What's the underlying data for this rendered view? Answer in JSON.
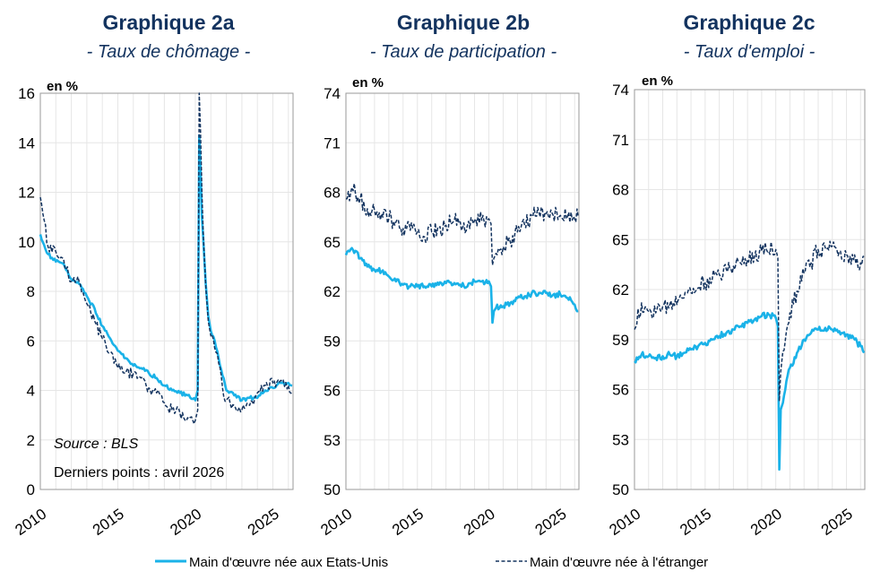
{
  "legend": {
    "us_born": "Main d'œuvre née aux Etats-Unis",
    "foreign_born": "Main d'œuvre née à l'étranger"
  },
  "colors": {
    "us_born": "#1ab2e8",
    "foreign_born": "#13335f",
    "title": "#13335f",
    "grid": "#e6e6e6",
    "frame": "#9a9a9a"
  },
  "chart_data": [
    {
      "type": "line",
      "title": "Graphique 2a",
      "subtitle": "- Taux de chômage -",
      "unit_label": "en %",
      "xlim": [
        2010,
        2026.3
      ],
      "ylim": [
        0,
        16
      ],
      "yticks": [
        0,
        2,
        4,
        6,
        8,
        10,
        12,
        14,
        16
      ],
      "xticks": [
        2010,
        2015,
        2020,
        2025
      ],
      "annotations": [
        "Source : BLS",
        "Derniers points : avril 2026"
      ],
      "series": [
        {
          "name": "Main d'œuvre née aux Etats-Unis",
          "x": [
            2010,
            2010.5,
            2011,
            2011.5,
            2012,
            2012.5,
            2013,
            2013.5,
            2014,
            2014.5,
            2015,
            2015.5,
            2016,
            2016.5,
            2017,
            2017.5,
            2018,
            2018.5,
            2019,
            2019.5,
            2020,
            2020.15,
            2020.25,
            2020.33,
            2020.42,
            2020.5,
            2020.67,
            2020.83,
            2021,
            2021.25,
            2021.5,
            2021.75,
            2022,
            2022.5,
            2023,
            2023.5,
            2024,
            2024.5,
            2025,
            2025.5,
            2026,
            2026.25
          ],
          "values": [
            10.3,
            9.5,
            9.2,
            9.1,
            8.5,
            8.3,
            7.8,
            7.3,
            6.6,
            6.1,
            5.6,
            5.3,
            5.0,
            4.9,
            4.7,
            4.5,
            4.2,
            4.0,
            3.9,
            3.8,
            3.6,
            4.0,
            14.3,
            13.0,
            11.0,
            10.2,
            8.3,
            7.0,
            6.4,
            6.0,
            5.3,
            4.6,
            4.0,
            3.8,
            3.6,
            3.7,
            3.7,
            4.0,
            4.1,
            4.3,
            4.3,
            4.2
          ]
        },
        {
          "name": "Main d'œuvre née à l'étranger",
          "x": [
            2010,
            2010.5,
            2011,
            2011.5,
            2012,
            2012.5,
            2013,
            2013.5,
            2014,
            2014.5,
            2015,
            2015.5,
            2016,
            2016.5,
            2017,
            2017.5,
            2018,
            2018.5,
            2019,
            2019.5,
            2020,
            2020.15,
            2020.25,
            2020.33,
            2020.42,
            2020.5,
            2020.67,
            2020.83,
            2021,
            2021.25,
            2021.5,
            2021.75,
            2022,
            2022.5,
            2023,
            2023.5,
            2024,
            2024.5,
            2025,
            2025.5,
            2026,
            2026.25
          ],
          "values": [
            11.8,
            9.8,
            9.6,
            9.3,
            8.4,
            8.4,
            7.5,
            6.8,
            6.1,
            5.5,
            4.9,
            4.7,
            4.7,
            4.5,
            4.1,
            3.9,
            3.5,
            3.2,
            3.1,
            2.9,
            2.8,
            3.2,
            16.0,
            14.5,
            12.0,
            10.4,
            8.2,
            6.8,
            6.2,
            5.7,
            5.1,
            4.1,
            3.6,
            3.4,
            3.2,
            3.4,
            3.9,
            4.2,
            4.3,
            4.4,
            4.2,
            3.8
          ]
        }
      ]
    },
    {
      "type": "line",
      "title": "Graphique 2b",
      "subtitle": "- Taux de participation -",
      "unit_label": "en %",
      "xlim": [
        2010,
        2026.3
      ],
      "ylim": [
        50,
        74
      ],
      "yticks": [
        50,
        53,
        56,
        59,
        62,
        65,
        68,
        71,
        74
      ],
      "xticks": [
        2010,
        2015,
        2020,
        2025
      ],
      "series": [
        {
          "name": "Main d'œuvre née aux Etats-Unis",
          "x": [
            2010,
            2010.5,
            2011,
            2011.5,
            2012,
            2012.5,
            2013,
            2013.5,
            2014,
            2014.5,
            2015,
            2015.5,
            2016,
            2016.5,
            2017,
            2017.5,
            2018,
            2018.5,
            2019,
            2019.5,
            2020,
            2020.15,
            2020.25,
            2020.35,
            2020.5,
            2020.75,
            2021,
            2021.5,
            2022,
            2022.5,
            2023,
            2023.5,
            2024,
            2024.5,
            2025,
            2025.5,
            2026,
            2026.25
          ],
          "values": [
            64.2,
            64.5,
            64.0,
            63.5,
            63.3,
            63.2,
            62.9,
            62.6,
            62.4,
            62.3,
            62.3,
            62.3,
            62.3,
            62.4,
            62.5,
            62.4,
            62.4,
            62.3,
            62.6,
            62.6,
            62.6,
            62.3,
            60.1,
            60.8,
            61.0,
            61.0,
            61.1,
            61.3,
            61.6,
            61.7,
            61.9,
            61.9,
            61.9,
            61.8,
            61.8,
            61.6,
            61.2,
            60.8
          ]
        },
        {
          "name": "Main d'œuvre née à l'étranger",
          "x": [
            2010,
            2010.5,
            2011,
            2011.5,
            2012,
            2012.5,
            2013,
            2013.5,
            2014,
            2014.5,
            2015,
            2015.5,
            2016,
            2016.5,
            2017,
            2017.5,
            2018,
            2018.5,
            2019,
            2019.5,
            2020,
            2020.15,
            2020.25,
            2020.35,
            2020.5,
            2020.75,
            2021,
            2021.5,
            2022,
            2022.5,
            2023,
            2023.5,
            2024,
            2024.5,
            2025,
            2025.5,
            2026,
            2026.25
          ],
          "values": [
            67.6,
            68.1,
            67.6,
            67.0,
            66.9,
            66.7,
            66.4,
            66.2,
            65.8,
            65.7,
            65.6,
            65.3,
            65.6,
            65.8,
            66.0,
            66.2,
            66.2,
            66.0,
            66.3,
            66.3,
            66.4,
            66.1,
            63.6,
            64.0,
            64.3,
            64.5,
            64.7,
            65.0,
            65.6,
            66.0,
            66.6,
            66.8,
            66.7,
            66.6,
            66.6,
            66.5,
            66.4,
            66.5
          ]
        }
      ]
    },
    {
      "type": "line",
      "title": "Graphique 2c",
      "subtitle": "- Taux d'emploi -",
      "unit_label": "en %",
      "xlim": [
        2010,
        2026.3
      ],
      "ylim": [
        50,
        74
      ],
      "yticks": [
        50,
        53,
        56,
        59,
        62,
        65,
        68,
        71,
        74
      ],
      "xticks": [
        2010,
        2015,
        2020,
        2025
      ],
      "series": [
        {
          "name": "Main d'œuvre née aux Etats-Unis",
          "x": [
            2010,
            2010.5,
            2011,
            2011.5,
            2012,
            2012.5,
            2013,
            2013.5,
            2014,
            2014.5,
            2015,
            2015.5,
            2016,
            2016.5,
            2017,
            2017.5,
            2018,
            2018.5,
            2019,
            2019.5,
            2020,
            2020.15,
            2020.25,
            2020.35,
            2020.5,
            2020.75,
            2021,
            2021.5,
            2022,
            2022.5,
            2023,
            2023.5,
            2024,
            2024.5,
            2025,
            2025.5,
            2026,
            2026.25
          ],
          "values": [
            57.7,
            58.1,
            58.0,
            57.9,
            58.0,
            58.1,
            58.0,
            58.2,
            58.4,
            58.6,
            58.8,
            59.0,
            59.2,
            59.4,
            59.6,
            59.8,
            60.0,
            60.2,
            60.4,
            60.5,
            60.3,
            59.8,
            51.2,
            54.8,
            55.2,
            56.5,
            57.3,
            58.2,
            59.0,
            59.4,
            59.6,
            59.7,
            59.6,
            59.5,
            59.3,
            59.1,
            58.6,
            58.2
          ]
        },
        {
          "name": "Main d'œuvre née à l'étranger",
          "x": [
            2010,
            2010.5,
            2011,
            2011.5,
            2012,
            2012.5,
            2013,
            2013.5,
            2014,
            2014.5,
            2015,
            2015.5,
            2016,
            2016.5,
            2017,
            2017.5,
            2018,
            2018.5,
            2019,
            2019.5,
            2020,
            2020.15,
            2020.25,
            2020.35,
            2020.5,
            2020.75,
            2021,
            2021.5,
            2022,
            2022.5,
            2023,
            2023.5,
            2024,
            2024.5,
            2025,
            2025.5,
            2026,
            2026.25
          ],
          "values": [
            59.6,
            61.2,
            60.7,
            60.6,
            61.0,
            61.1,
            61.1,
            61.5,
            61.8,
            62.1,
            62.4,
            62.6,
            62.9,
            63.2,
            63.4,
            63.6,
            63.8,
            64.0,
            64.3,
            64.3,
            64.4,
            63.9,
            55.3,
            57.1,
            58.3,
            59.5,
            60.6,
            61.9,
            63.0,
            63.6,
            64.4,
            64.5,
            64.6,
            64.3,
            64.1,
            63.8,
            63.6,
            64.0
          ]
        }
      ]
    }
  ]
}
